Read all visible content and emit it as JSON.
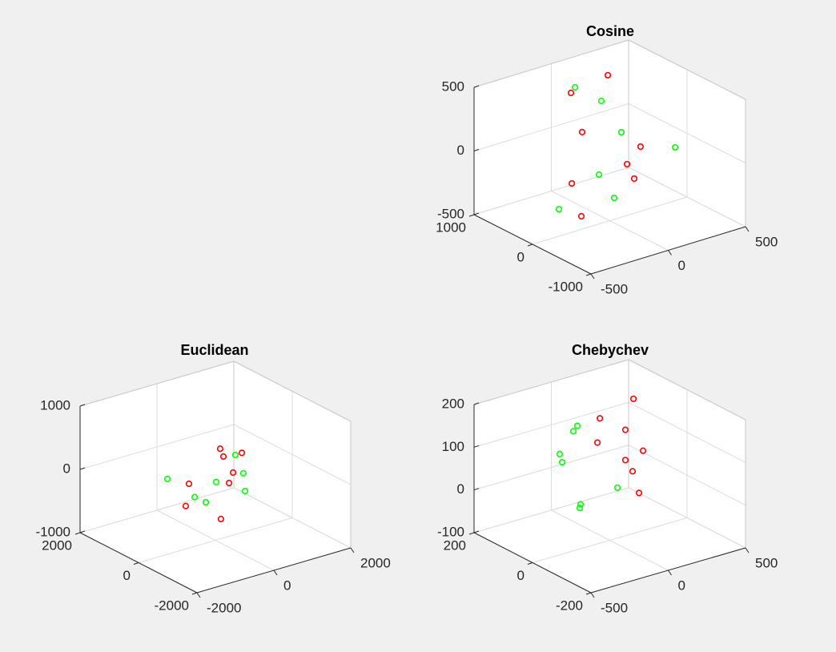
{
  "chart_data": [
    {
      "type": "scatter3d",
      "title": "Cosine",
      "xlim": [
        -500,
        500
      ],
      "ylim": [
        -1000,
        1000
      ],
      "zlim": [
        -500,
        500
      ],
      "xticks": [
        -500,
        0,
        500
      ],
      "yticks": [
        -1000,
        0,
        1000
      ],
      "zticks": [
        -500,
        0,
        500
      ],
      "grid": true,
      "series": [
        {
          "color": "#ff0000",
          "x": [
            214,
            -100,
            -179,
            199,
            36,
            7,
            -170,
            -335
          ],
          "y": [
            600,
            400,
            0,
            0,
            -200,
            -400,
            200,
            -400
          ],
          "z": [
            423,
            447,
            262,
            8,
            -23,
            -79,
            -191,
            -248
          ]
        },
        {
          "color": "#00ff00",
          "x": [
            2,
            21,
            75,
            347,
            -70,
            -123,
            -329
          ],
          "y": [
            600,
            200,
            0,
            -200,
            0,
            -400,
            0
          ],
          "z": [
            407,
            386,
            167,
            -7,
            -113,
            -182,
            -287
          ]
        }
      ]
    },
    {
      "type": "scatter3d",
      "title": "Euclidean",
      "xlim": [
        -2000,
        2000
      ],
      "ylim": [
        -2000,
        2000
      ],
      "zlim": [
        -1000,
        1000
      ],
      "xticks": [
        -2000,
        0,
        2000
      ],
      "yticks": [
        -2000,
        0,
        2000
      ],
      "zticks": [
        -1000,
        0,
        1000
      ],
      "grid": true,
      "series": [
        {
          "color": "#ff0000",
          "x": [
            124,
            688,
            208,
            460,
            -688,
            356,
            -772,
            144
          ],
          "y": [
            0,
            0,
            0,
            0,
            0,
            0,
            0,
            0
          ],
          "z": [
            424,
            260,
            286,
            -12,
            14,
            -158,
            -322,
            -690
          ]
        },
        {
          "color": "#00ff00",
          "x": [
            520,
            728,
            -1250,
            20,
            772,
            -540,
            -250
          ],
          "y": [
            0,
            0,
            0,
            0,
            0,
            0,
            0
          ],
          "z": [
            256,
            -70,
            190,
            -82,
            -358,
            -222,
            -354
          ]
        }
      ]
    },
    {
      "type": "scatter3d",
      "title": "Chebychev",
      "xlim": [
        -500,
        500
      ],
      "ylim": [
        -200,
        200
      ],
      "zlim": [
        -100,
        200
      ],
      "xticks": [
        -500,
        0,
        500
      ],
      "yticks": [
        -200,
        0,
        200
      ],
      "zticks": [
        -100,
        0,
        100,
        200
      ],
      "grid": true,
      "series": [
        {
          "color": "#ff0000",
          "x": [
            380,
            87,
            252,
            -80,
            215,
            101,
            72,
            38
          ],
          "y": [
            120,
            80,
            80,
            0,
            0,
            0,
            -40,
            -80
          ],
          "z": [
            149,
            148,
            104,
            137,
            87,
            77,
            68,
            35
          ]
        },
        {
          "color": "#00ff00",
          "x": [
            -210,
            -236,
            -324,
            -308,
            -102,
            -189,
            -194
          ],
          "y": [
            0,
            0,
            0,
            0,
            -80,
            0,
            0
          ],
          "z": [
            190,
            180,
            136,
            115,
            62,
            4,
            -4
          ]
        }
      ]
    }
  ]
}
